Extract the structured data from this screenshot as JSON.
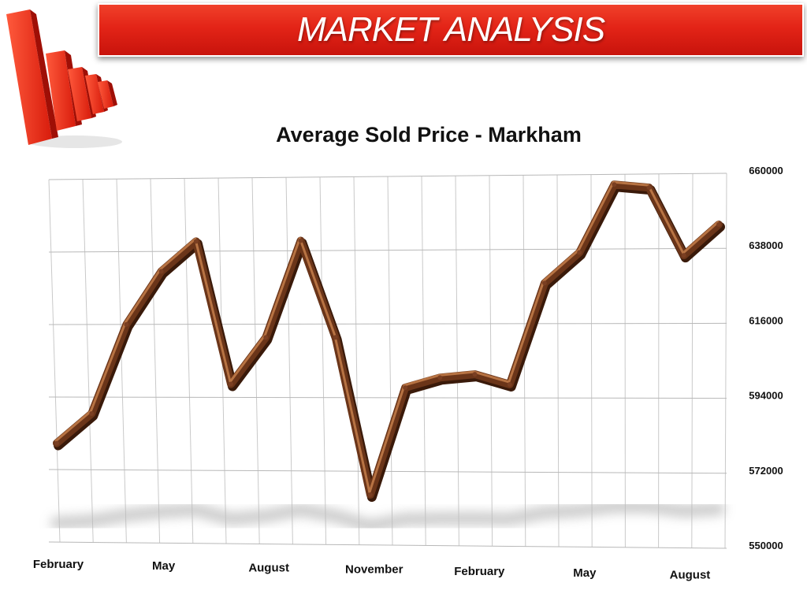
{
  "header": {
    "banner_title": "MARKET ANALYSIS"
  },
  "colors": {
    "banner_red": "#e32417",
    "line_wood": "#8a4a2c"
  },
  "icons": {
    "logo": "red-3d-bar-chart-icon"
  },
  "chart_data": {
    "type": "line",
    "title": "Average Sold Price - Markham",
    "xlabel": "",
    "ylabel": "",
    "ylim": [
      550000,
      660000
    ],
    "y_ticks": [
      550000,
      572000,
      594000,
      616000,
      638000,
      660000
    ],
    "y_tick_labels": [
      "550000",
      "572000",
      "594000",
      "616000",
      "638000",
      "660000"
    ],
    "x_tick_labels": [
      "February",
      "May",
      "August",
      "November",
      "February",
      "May",
      "August"
    ],
    "x_tick_positions": [
      0,
      3,
      6,
      9,
      12,
      15,
      18
    ],
    "grid": true,
    "legend": "none",
    "series": [
      {
        "values": [
          580000,
          589000,
          616000,
          632000,
          641000,
          598000,
          612000,
          641000,
          612000,
          565000,
          597000,
          600000,
          601000,
          598000,
          628000,
          637000,
          657000,
          656000,
          636000,
          645000
        ]
      }
    ]
  }
}
